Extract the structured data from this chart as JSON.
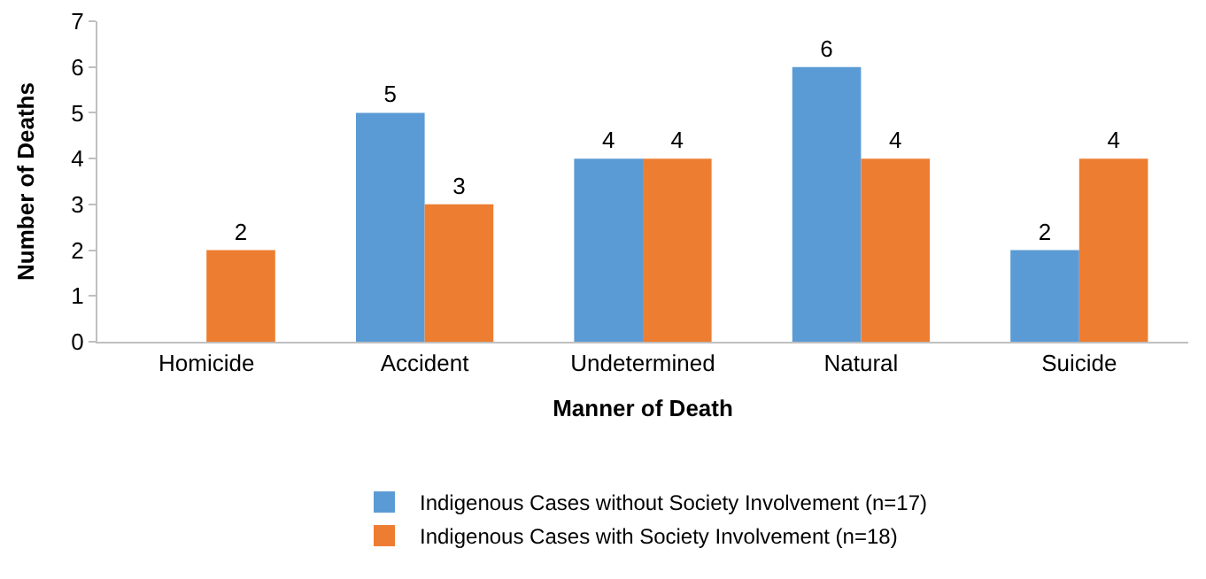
{
  "chart_data": {
    "type": "bar",
    "xlabel": "Manner of Death",
    "ylabel": "Number of Deaths",
    "categories": [
      "Homicide",
      "Accident",
      "Undetermined",
      "Natural",
      "Suicide"
    ],
    "series": [
      {
        "name": "Indigenous Cases without Society Involvement (n=17)",
        "color": "#5b9bd5",
        "values": [
          null,
          5,
          4,
          6,
          2
        ]
      },
      {
        "name": "Indigenous Cases with Society Involvement (n=18)",
        "color": "#ed7d31",
        "values": [
          2,
          3,
          4,
          4,
          4
        ]
      }
    ],
    "ylim": [
      0,
      7
    ],
    "yticks": [
      0,
      1,
      2,
      3,
      4,
      5,
      6,
      7
    ],
    "data_labels": true,
    "legend": "bottom",
    "grid": false
  }
}
